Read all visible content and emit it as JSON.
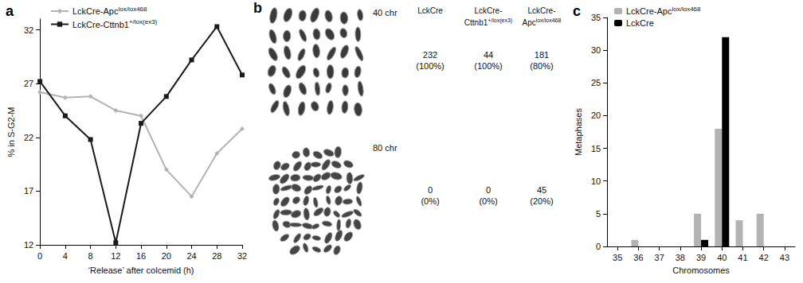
{
  "chart_data": [
    {
      "type": "line",
      "title": "a",
      "x_label": "‘Release’ after colcemid (h)",
      "y_label": "% in S-G2-M",
      "x": [
        0,
        4,
        8,
        12,
        16,
        20,
        24,
        28,
        32
      ],
      "series": [
        {
          "name": "LckCre-Apclox/lox468",
          "color": "#b3b3b3",
          "marker": "diamond",
          "values": [
            26.2,
            25.7,
            25.8,
            24.5,
            24.0,
            19.0,
            16.5,
            20.5,
            22.8
          ]
        },
        {
          "name": "LckCre-Cttnb1+/lox(ex3)",
          "color": "#1a1a1a",
          "marker": "square",
          "values": [
            27.2,
            24.0,
            21.8,
            12.2,
            23.3,
            25.8,
            29.2,
            32.3,
            27.8
          ]
        }
      ],
      "xlim": [
        0,
        32
      ],
      "xticks": [
        0,
        4,
        8,
        12,
        16,
        20,
        24,
        28,
        32
      ],
      "ylim": [
        12,
        33
      ],
      "yticks": [
        12,
        17,
        22,
        27,
        32
      ],
      "legend": "top",
      "grid": false
    },
    {
      "type": "bar",
      "title": "c",
      "x_label": "Chromosomes",
      "y_label": "Metaphases",
      "categories": [
        "35",
        "36",
        "37",
        "38",
        "39",
        "40",
        "41",
        "42",
        "43"
      ],
      "series": [
        {
          "name": "LckCre-Apclox/lox468",
          "color": "#b3b3b3",
          "values": [
            0,
            1,
            0,
            0,
            5,
            18,
            4,
            5,
            0
          ]
        },
        {
          "name": "LckCre",
          "color": "#000000",
          "values": [
            0,
            0,
            0,
            0,
            1,
            32,
            0,
            0,
            0
          ]
        }
      ],
      "ylim": [
        0,
        35
      ],
      "yticks": [
        0,
        5,
        10,
        15,
        20,
        25,
        30,
        35
      ],
      "legend": "top-left",
      "grid": false
    }
  ],
  "table": {
    "title": "b",
    "columns": [
      "LckCre",
      "LckCre-Cttnb1+/lox(ex3)",
      "LckCre-Apclox/lox468"
    ],
    "rows": [
      {
        "label": "40 chr",
        "cells": [
          [
            "232",
            "(100%)"
          ],
          [
            "44",
            "(100%)"
          ],
          [
            "181",
            "(80%)"
          ]
        ]
      },
      {
        "label": "80 chr",
        "cells": [
          [
            "0",
            "(0%)"
          ],
          [
            "0",
            "(0%)"
          ],
          [
            "45",
            "(20%)"
          ]
        ]
      }
    ]
  }
}
